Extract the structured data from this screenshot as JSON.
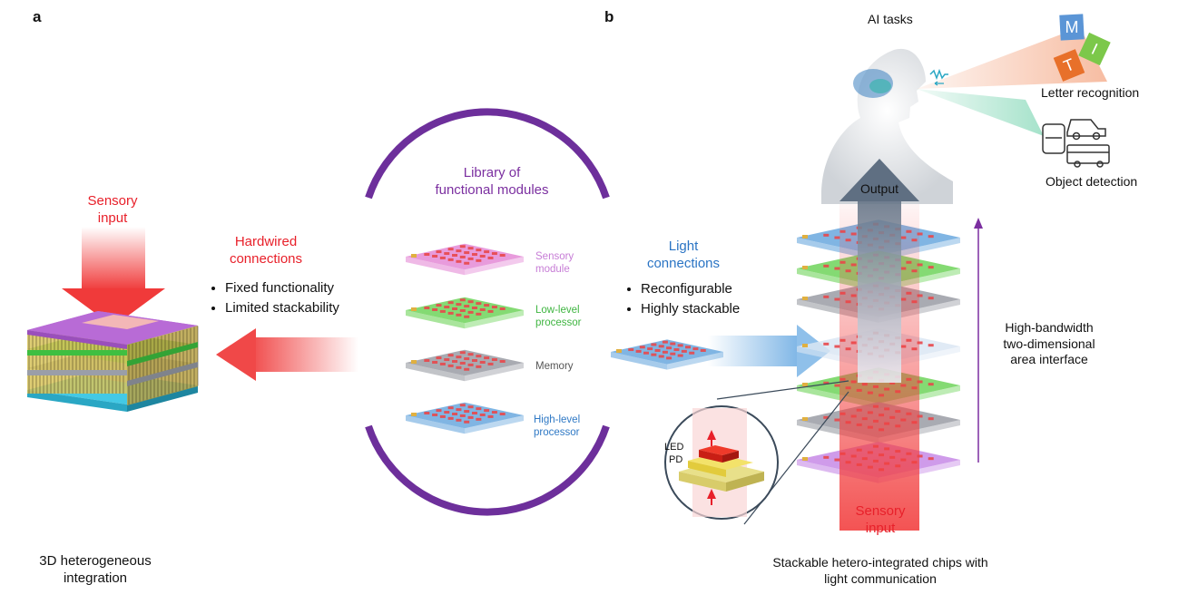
{
  "panel_a": {
    "letter": "a",
    "sensory_input": [
      "Sensory",
      "input"
    ],
    "hardwired": [
      "Hardwired",
      "connections"
    ],
    "bullets": [
      "Fixed functionality",
      "Limited stackability"
    ],
    "caption": [
      "3D heterogeneous",
      "integration"
    ]
  },
  "library": {
    "title": [
      "Library of",
      "functional modules"
    ],
    "modules": [
      {
        "label": [
          "Sensory",
          "module"
        ],
        "color": "#c77dd6"
      },
      {
        "label": [
          "Low-level",
          "processor"
        ],
        "color": "#3fb541"
      },
      {
        "label": [
          "Memory"
        ],
        "color": "#555555"
      },
      {
        "label": [
          "High-level",
          "processor"
        ],
        "color": "#2f79c5"
      }
    ]
  },
  "panel_b": {
    "letter": "b",
    "light": [
      "Light",
      "connections"
    ],
    "bullets": [
      "Reconfigurable",
      "Highly stackable"
    ],
    "ai_tasks": "AI tasks",
    "letter_recognition": "Letter recognition",
    "object_detection": "Object detection",
    "letters": [
      "M",
      "I",
      "T"
    ],
    "output": "Output",
    "bandwidth": [
      "High-bandwidth",
      "two-dimensional",
      "area interface"
    ],
    "led": "LED",
    "pd": "PD",
    "sensory_input": [
      "Sensory",
      "input"
    ],
    "caption": [
      "Stackable hetero-integrated chips with",
      "light communication"
    ]
  },
  "colors": {
    "red": "#e8202a",
    "purple": "#7b2fa0",
    "blue": "#2a74c4",
    "green": "#45b649",
    "arc": "#6d2f9b"
  }
}
